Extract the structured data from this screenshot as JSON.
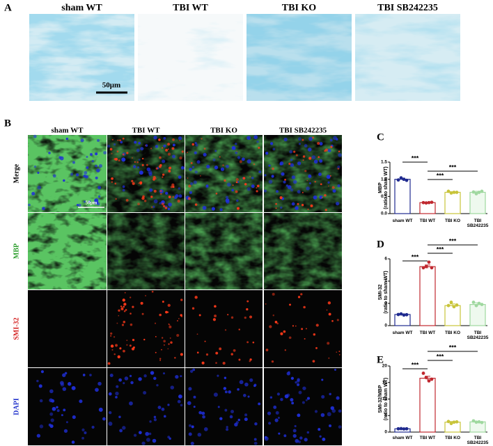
{
  "panel_labels": [
    "A",
    "B",
    "C",
    "D",
    "E"
  ],
  "panel_a": {
    "columns": [
      "sham WT",
      "TBI WT",
      "TBI KO",
      "TBI SB242235"
    ],
    "scale_bar": "50μm"
  },
  "panel_b": {
    "columns": [
      "sham WT",
      "TBI WT",
      "TBI KO",
      "TBI SB242235"
    ],
    "rows": [
      "Merge",
      "MBP",
      "SMI-32",
      "DAPI"
    ],
    "scale_bar": "50μm"
  },
  "chart_data": [
    {
      "type": "bar",
      "ylabel": "MBP",
      "ylabel_sub": "(ratio to sham WT)",
      "categories": [
        "sham WT",
        "TBI WT",
        "TBI KO",
        "TBI SB242235"
      ],
      "colors": [
        "#1f2a8f",
        "#c0282f",
        "#c8c43a",
        "#9fd89f"
      ],
      "values": [
        1.0,
        0.32,
        0.62,
        0.62
      ],
      "errors": [
        0.03,
        0.005,
        0.02,
        0.03
      ],
      "points": [
        [
          0.98,
          1.04,
          1.0,
          0.97
        ],
        [
          0.32,
          0.31,
          0.32,
          0.33
        ],
        [
          0.65,
          0.6,
          0.62,
          0.62
        ],
        [
          0.63,
          0.58,
          0.62,
          0.65
        ]
      ],
      "ylim": [
        0,
        1.5
      ],
      "yticks": [
        {
          "value": 0,
          "label": "0.0"
        },
        0.5,
        {
          "value": 1,
          "label": "1.0"
        },
        1.5
      ],
      "annotations": [
        "***",
        "***",
        "***"
      ]
    },
    {
      "type": "bar",
      "ylabel": "SMI-32",
      "ylabel_sub": "(ratio to sham WT)",
      "categories": [
        "sham WT",
        "TBI WT",
        "TBI KO",
        "TBI SB242235"
      ],
      "colors": [
        "#1f2a8f",
        "#c0282f",
        "#c8c43a",
        "#9fd89f"
      ],
      "values": [
        1.0,
        5.3,
        1.8,
        1.9
      ],
      "errors": [
        0.05,
        0.15,
        0.15,
        0.15
      ],
      "points": [
        [
          1.0,
          1.05,
          0.95,
          0.98
        ],
        [
          5.2,
          5.3,
          5.7,
          5.2
        ],
        [
          1.8,
          2.1,
          1.7,
          1.85
        ],
        [
          2.1,
          1.8,
          2.0,
          1.9
        ]
      ],
      "ylim": [
        0,
        6
      ],
      "yticks": [
        0,
        2,
        4,
        6
      ],
      "annotations": [
        "***",
        "***",
        "***"
      ]
    },
    {
      "type": "bar",
      "ylabel": "SMI-32/MBP",
      "ylabel_sub": "(ratio to sham WT)",
      "categories": [
        "sham WT",
        "TBI WT",
        "TBI KO",
        "TBI SB242235"
      ],
      "colors": [
        "#1f2a8f",
        "#c0282f",
        "#c8c43a",
        "#9fd89f"
      ],
      "values": [
        1.0,
        16.3,
        3.0,
        3.1
      ],
      "errors": [
        0.05,
        0.6,
        0.2,
        0.2
      ],
      "points": [
        [
          1.0,
          1.05,
          0.95,
          1.0
        ],
        [
          17.8,
          16.5,
          15.5,
          16.0
        ],
        [
          3.2,
          2.6,
          3.0,
          3.1
        ],
        [
          3.4,
          3.0,
          3.1,
          2.9
        ]
      ],
      "ylim": [
        0,
        20
      ],
      "yticks": [
        0,
        5,
        10,
        15,
        20
      ],
      "annotations": [
        "***",
        "***",
        "***"
      ]
    }
  ]
}
